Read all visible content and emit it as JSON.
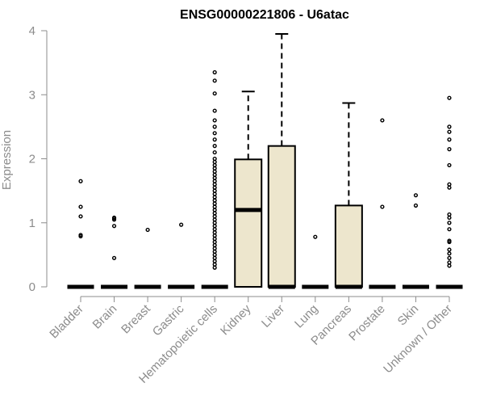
{
  "chart_data": {
    "type": "box",
    "title": "ENSG00000221806 - U6atac",
    "ylabel": "Expression",
    "xlabel": "",
    "ylim": [
      0,
      4
    ],
    "yticks": [
      "0",
      "1",
      "2",
      "3",
      "4"
    ],
    "categories": [
      "Bladder",
      "Brain",
      "Breast",
      "Gastric",
      "Hematopoietic cells",
      "Kidney",
      "Liver",
      "Lung",
      "Pancreas",
      "Prostate",
      "Skin",
      "Unknown / Other"
    ],
    "box_fill": "#ede6cd",
    "outline_color": "#000000",
    "boxes": [
      {
        "category": "Bladder",
        "q1": 0,
        "median": 0,
        "q3": 0,
        "whisker_low": 0,
        "whisker_high": 0,
        "outliers": [
          0.79,
          0.81,
          1.1,
          1.25,
          1.65
        ]
      },
      {
        "category": "Brain",
        "q1": 0,
        "median": 0,
        "q3": 0,
        "whisker_low": 0,
        "whisker_high": 0,
        "outliers": [
          0.45,
          0.95,
          1.05,
          1.07,
          1.08
        ]
      },
      {
        "category": "Breast",
        "q1": 0,
        "median": 0,
        "q3": 0,
        "whisker_low": 0,
        "whisker_high": 0,
        "outliers": [
          0.89
        ]
      },
      {
        "category": "Gastric",
        "q1": 0,
        "median": 0,
        "q3": 0,
        "whisker_low": 0,
        "whisker_high": 0,
        "outliers": [
          0.97
        ]
      },
      {
        "category": "Hematopoietic cells",
        "q1": 0,
        "median": 0,
        "q3": 0,
        "whisker_low": 0,
        "whisker_high": 0,
        "outliers": [
          0.3,
          0.35,
          0.4,
          0.45,
          0.5,
          0.55,
          0.6,
          0.65,
          0.7,
          0.75,
          0.8,
          0.85,
          0.9,
          0.95,
          1.0,
          1.05,
          1.1,
          1.15,
          1.2,
          1.25,
          1.3,
          1.35,
          1.4,
          1.45,
          1.5,
          1.55,
          1.6,
          1.65,
          1.7,
          1.75,
          1.8,
          1.85,
          1.9,
          1.95,
          2.0,
          2.1,
          2.2,
          2.3,
          2.4,
          2.5,
          2.6,
          2.75,
          3.02,
          3.22,
          3.35
        ]
      },
      {
        "category": "Kidney",
        "q1": 0,
        "median": 1.2,
        "q3": 1.99,
        "whisker_low": 0,
        "whisker_high": 3.05,
        "outliers": []
      },
      {
        "category": "Liver",
        "q1": 0,
        "median": 0,
        "q3": 2.2,
        "whisker_low": 0,
        "whisker_high": 3.95,
        "outliers": []
      },
      {
        "category": "Lung",
        "q1": 0,
        "median": 0,
        "q3": 0,
        "whisker_low": 0,
        "whisker_high": 0,
        "outliers": [
          0.78
        ]
      },
      {
        "category": "Pancreas",
        "q1": 0,
        "median": 0,
        "q3": 1.27,
        "whisker_low": 0,
        "whisker_high": 2.87,
        "outliers": []
      },
      {
        "category": "Prostate",
        "q1": 0,
        "median": 0,
        "q3": 0,
        "whisker_low": 0,
        "whisker_high": 0,
        "outliers": [
          1.25,
          2.6
        ]
      },
      {
        "category": "Skin",
        "q1": 0,
        "median": 0,
        "q3": 0,
        "whisker_low": 0,
        "whisker_high": 0,
        "outliers": [
          1.27,
          1.43
        ]
      },
      {
        "category": "Unknown / Other",
        "q1": 0,
        "median": 0,
        "q3": 0,
        "whisker_low": 0,
        "whisker_high": 0,
        "outliers": [
          0.33,
          0.38,
          0.45,
          0.52,
          0.58,
          0.7,
          0.72,
          0.9,
          1.0,
          1.08,
          1.13,
          1.55,
          1.6,
          1.9,
          2.15,
          2.3,
          2.42,
          2.5,
          2.95
        ]
      }
    ]
  }
}
